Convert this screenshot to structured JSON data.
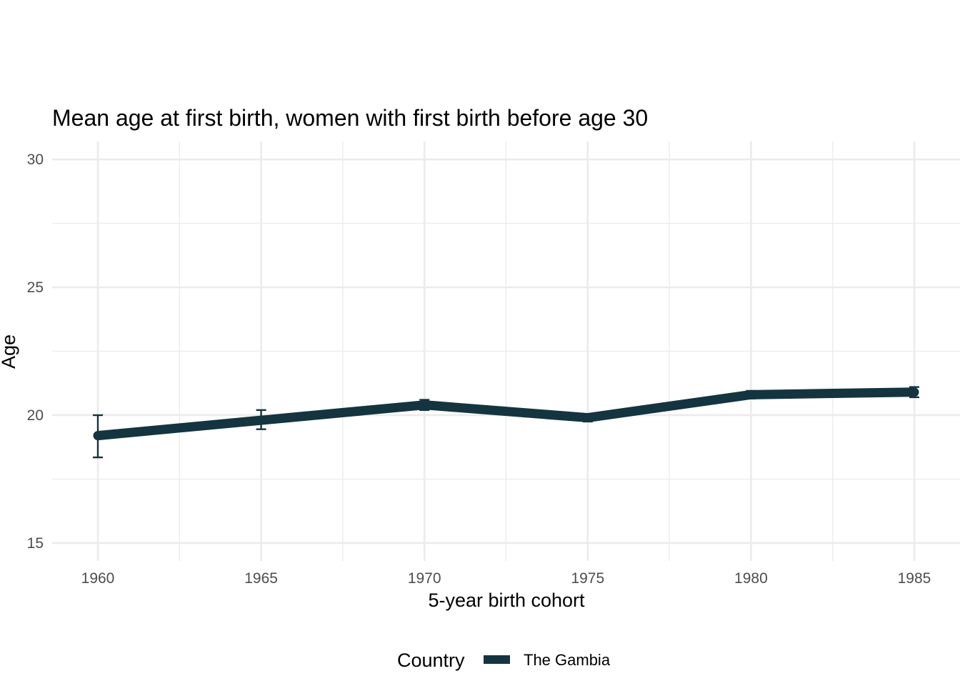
{
  "chart_data": {
    "type": "line",
    "title": "Mean age at first birth, women with first birth before age 30",
    "xlabel": "5-year birth cohort",
    "ylabel": "Age",
    "x": [
      1960,
      1965,
      1970,
      1975,
      1980,
      1985
    ],
    "x_ticks": [
      "1960",
      "1965",
      "1970",
      "1975",
      "1980",
      "1985"
    ],
    "y_ticks": [
      "15",
      "20",
      "25",
      "30"
    ],
    "xlim": [
      1958.6,
      1986.4
    ],
    "ylim": [
      14.3,
      30.7
    ],
    "grid": true,
    "legend_position": "bottom",
    "legend_title": "Country",
    "series": [
      {
        "name": "The Gambia",
        "color": "#14343f",
        "values": [
          19.2,
          19.8,
          20.4,
          19.9,
          20.8,
          20.9
        ],
        "error_low": [
          18.35,
          19.45,
          20.2,
          19.75,
          20.65,
          20.7
        ],
        "error_high": [
          20.0,
          20.2,
          20.6,
          20.05,
          20.95,
          21.1
        ]
      }
    ]
  }
}
